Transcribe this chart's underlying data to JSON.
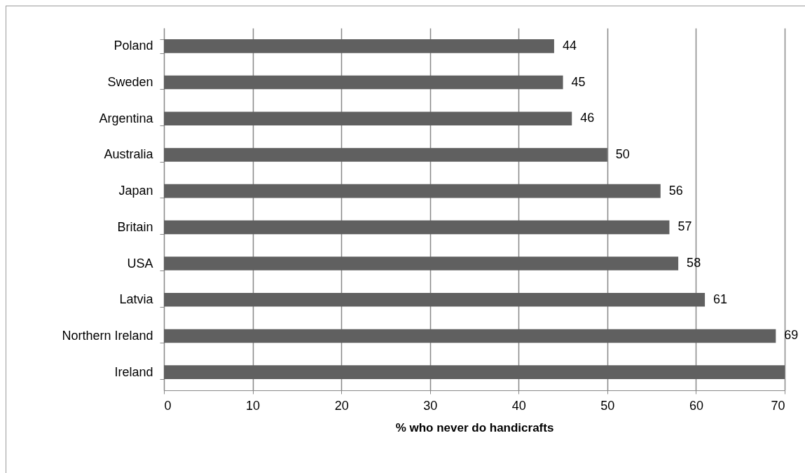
{
  "chart_data": {
    "type": "bar",
    "orientation": "horizontal",
    "xlabel": "% who never do handicrafts",
    "categories": [
      "Poland",
      "Sweden",
      "Argentina",
      "Australia",
      "Japan",
      "Britain",
      "USA",
      "Latvia",
      "Northern Ireland",
      "Ireland"
    ],
    "values": [
      44,
      45,
      46,
      50,
      56,
      57,
      58,
      61,
      69,
      70
    ],
    "value_labels": [
      "44",
      "45",
      "46",
      "50",
      "56",
      "57",
      "58",
      "61",
      "69",
      null
    ],
    "color": "#606060",
    "xlim": [
      0,
      70
    ],
    "xticks": [
      0,
      10,
      20,
      30,
      40,
      50,
      60,
      70
    ],
    "grid": "x"
  }
}
